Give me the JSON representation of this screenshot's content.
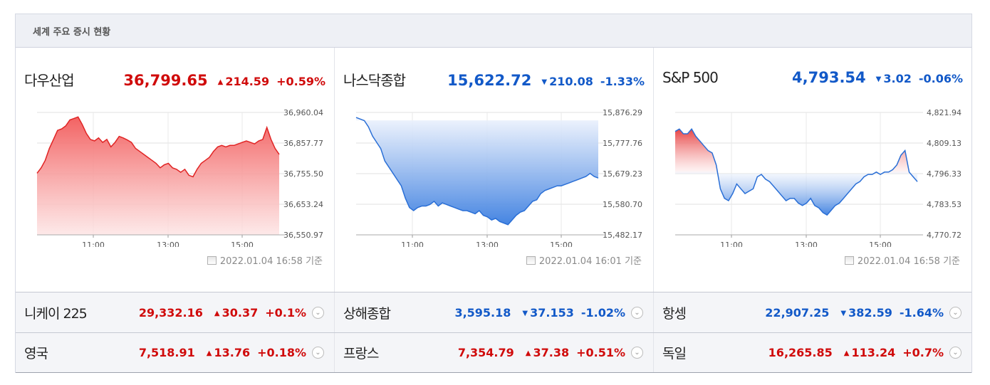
{
  "header": {
    "title": "세계 주요 증시 현황"
  },
  "panels": [
    {
      "name": "다우산업",
      "value": "36,799.65",
      "change": "214.59",
      "pct": "+0.59%",
      "direction": "up",
      "timestamp": "2022.01.04 16:58 기준",
      "y_ticks": [
        "36,960.04",
        "36,857.77",
        "36,755.50",
        "36,653.24",
        "36,550.97"
      ],
      "x_ticks": [
        "11:00",
        "13:00",
        "15:00"
      ]
    },
    {
      "name": "나스닥종합",
      "value": "15,622.72",
      "change": "210.08",
      "pct": "-1.33%",
      "direction": "down",
      "timestamp": "2022.01.04 16:01 기준",
      "y_ticks": [
        "15,876.29",
        "15,777.76",
        "15,679.23",
        "15,580.70",
        "15,482.17"
      ],
      "x_ticks": [
        "11:00",
        "13:00",
        "15:00"
      ]
    },
    {
      "name": "S&P 500",
      "value": "4,793.54",
      "change": "3.02",
      "pct": "-0.06%",
      "direction": "down",
      "timestamp": "2022.01.04 16:58 기준",
      "y_ticks": [
        "4,821.94",
        "4,809.13",
        "4,796.33",
        "4,783.53",
        "4,770.72"
      ],
      "x_ticks": [
        "11:00",
        "13:00",
        "15:00"
      ]
    }
  ],
  "rows": [
    [
      {
        "name": "니케이 225",
        "value": "29,332.16",
        "change": "30.37",
        "pct": "+0.1%",
        "direction": "up"
      },
      {
        "name": "상해종합",
        "value": "3,595.18",
        "change": "37.153",
        "pct": "-1.02%",
        "direction": "down"
      },
      {
        "name": "항셍",
        "value": "22,907.25",
        "change": "382.59",
        "pct": "-1.64%",
        "direction": "down"
      }
    ],
    [
      {
        "name": "영국",
        "value": "7,518.91",
        "change": "13.76",
        "pct": "+0.18%",
        "direction": "up"
      },
      {
        "name": "프랑스",
        "value": "7,354.79",
        "change": "37.38",
        "pct": "+0.51%",
        "direction": "up"
      },
      {
        "name": "독일",
        "value": "16,265.85",
        "change": "113.24",
        "pct": "+0.7%",
        "direction": "up"
      }
    ]
  ],
  "icons": {
    "up_arrow": "▲",
    "down_arrow": "▼",
    "expand": "chevron-down-icon",
    "stamp": "document-icon"
  },
  "colors": {
    "up": "#d00b0b",
    "down": "#1259c8"
  },
  "chart_data": [
    {
      "type": "area",
      "series": [
        {
          "values": [
            36757,
            36775,
            36800,
            36840,
            36870,
            36900,
            36905,
            36915,
            36935,
            36940,
            36945,
            36920,
            36890,
            36870,
            36865,
            36875,
            36860,
            36870,
            36845,
            36860,
            36880,
            36875,
            36868,
            36860,
            36840,
            36830,
            36820,
            36810,
            36800,
            36790,
            36775,
            36785,
            36790,
            36775,
            36770,
            36760,
            36770,
            36750,
            36745,
            36770,
            36790,
            36800,
            36810,
            36830,
            36845,
            36850,
            36845,
            36850,
            36850,
            36855,
            36860,
            36865,
            36860,
            36855,
            36865,
            36870,
            36910,
            36870,
            36840,
            36820
          ]
        }
      ],
      "x_tick_labels": [
        "11:00",
        "13:00",
        "15:00"
      ],
      "ylim": [
        36550.97,
        36960.04
      ],
      "baseline": "bottom"
    },
    {
      "type": "area",
      "series": [
        {
          "values": [
            15860,
            15855,
            15850,
            15830,
            15800,
            15780,
            15760,
            15720,
            15700,
            15680,
            15660,
            15640,
            15600,
            15570,
            15560,
            15570,
            15575,
            15575,
            15580,
            15590,
            15575,
            15585,
            15580,
            15575,
            15570,
            15565,
            15560,
            15560,
            15555,
            15550,
            15560,
            15545,
            15540,
            15530,
            15535,
            15525,
            15520,
            15515,
            15530,
            15545,
            15555,
            15560,
            15575,
            15590,
            15595,
            15615,
            15625,
            15630,
            15635,
            15640,
            15640,
            15645,
            15650,
            15655,
            15660,
            15665,
            15670,
            15680,
            15670,
            15665
          ]
        }
      ],
      "x_tick_labels": [
        "11:00",
        "13:00",
        "15:00"
      ],
      "ylim": [
        15482.17,
        15876.29
      ],
      "baseline": "top"
    },
    {
      "type": "area",
      "series": [
        {
          "values": [
            4814,
            4815,
            4813,
            4813,
            4815,
            4812,
            4810,
            4808,
            4806,
            4805,
            4800,
            4790,
            4786,
            4785,
            4788,
            4792,
            4790,
            4788,
            4789,
            4790,
            4795,
            4796,
            4794,
            4793,
            4791,
            4789,
            4787,
            4785,
            4786,
            4786,
            4784,
            4783,
            4784,
            4786,
            4783,
            4782,
            4780,
            4779,
            4781,
            4783,
            4784,
            4786,
            4788,
            4790,
            4792,
            4793,
            4795,
            4796,
            4796,
            4797,
            4796,
            4797,
            4797,
            4798,
            4800,
            4804,
            4806,
            4797,
            4795,
            4793
          ]
        }
      ],
      "x_tick_labels": [
        "11:00",
        "13:00",
        "15:00"
      ],
      "ylim": [
        4770.72,
        4821.94
      ],
      "baseline": "4796.33"
    }
  ]
}
